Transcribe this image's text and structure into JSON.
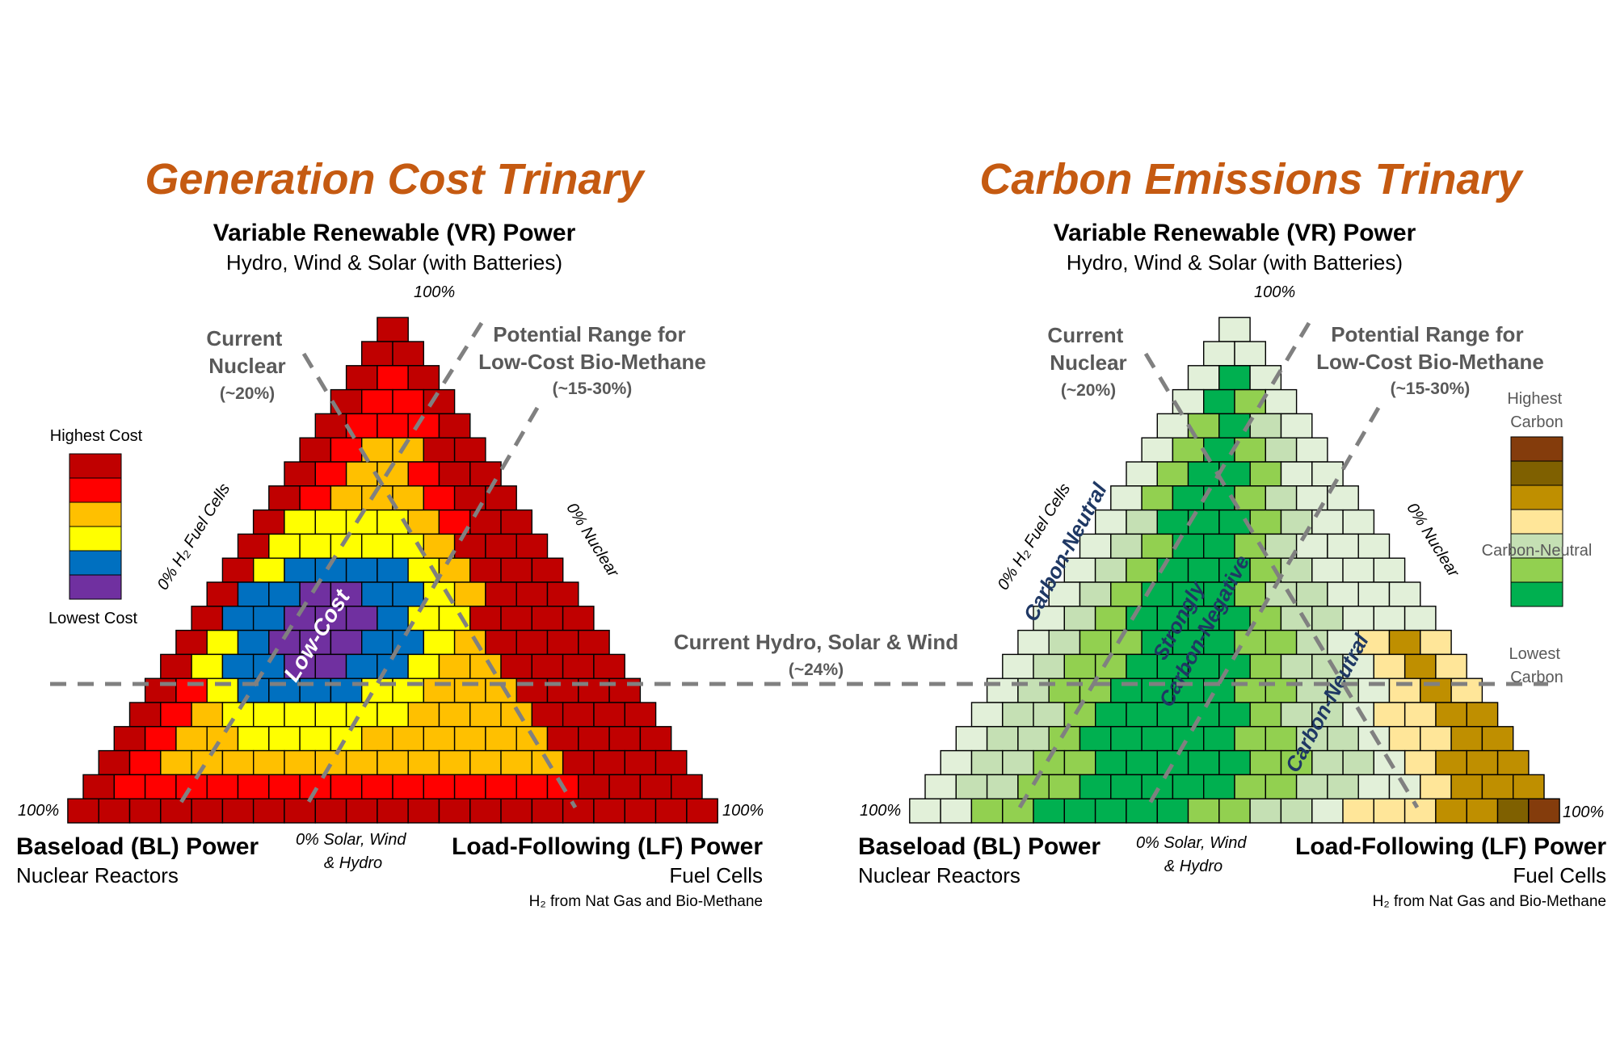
{
  "left": {
    "title": "Generation Cost Trinary",
    "vr_title": "Variable Renewable (VR) Power",
    "vr_sub": "Hydro, Wind & Solar (with Batteries)",
    "vr_pct": "100%",
    "current_nuclear_1": "Current",
    "current_nuclear_2": "Nuclear",
    "current_nuclear_3": "(~20%)",
    "potential_1": "Potential Range for",
    "potential_2": "Low-Cost Bio-Methane",
    "potential_3": "(~15-30%)",
    "h2_axis": "0% H₂ Fuel Cells",
    "nuclear_axis": "0% Nuclear",
    "solar_axis_1": "0% Solar, Wind",
    "solar_axis_2": "& Hydro",
    "bl_pct": "100%",
    "lf_pct": "100%",
    "bl_title": "Baseload (BL) Power",
    "bl_sub": "Nuclear Reactors",
    "lf_title": "Load-Following (LF) Power",
    "lf_sub": "Fuel Cells",
    "lf_sub2": "H₂ from Nat Gas and Bio-Methane",
    "region_label": "Low-Cost",
    "legend_top": "Highest Cost",
    "legend_bottom": "Lowest Cost",
    "legend_colors": [
      "#c00000",
      "#ff0000",
      "#ffc000",
      "#ffff00",
      "#0070c0",
      "#7030a0"
    ]
  },
  "right": {
    "title": "Carbon Emissions Trinary",
    "vr_title": "Variable Renewable (VR) Power",
    "vr_sub": "Hydro, Wind & Solar (with Batteries)",
    "vr_pct": "100%",
    "current_nuclear_1": "Current",
    "current_nuclear_2": "Nuclear",
    "current_nuclear_3": "(~20%)",
    "potential_1": "Potential Range for",
    "potential_2": "Low-Cost Bio-Methane",
    "potential_3": "(~15-30%)",
    "h2_axis": "0% H₂ Fuel Cells",
    "nuclear_axis": "0% Nuclear",
    "solar_axis_1": "0% Solar, Wind",
    "solar_axis_2": "& Hydro",
    "bl_pct": "100%",
    "lf_pct": "100%",
    "bl_title": "Baseload (BL) Power",
    "bl_sub": "Nuclear Reactors",
    "lf_title": "Load-Following (LF) Power",
    "lf_sub": "Fuel Cells",
    "lf_sub2": "H₂ from Nat Gas and Bio-Methane",
    "region_cn_left": "Carbon-Neutral",
    "region_neg_1": "Strongly",
    "region_neg_2": "Carbon-Negative",
    "region_cn_right": "Carbon-Neutral",
    "legend_top_1": "Highest",
    "legend_top_2": "Carbon",
    "legend_mid": "Carbon-Neutral",
    "legend_bottom_1": "Lowest",
    "legend_bottom_2": "Carbon",
    "legend_colors": [
      "#843c0c",
      "#7f6000",
      "#bf8f00",
      "#ffe699",
      "#c5e0b4",
      "#92d050",
      "#00b050"
    ]
  },
  "hydro_line_1": "Current Hydro, Solar & Wind",
  "hydro_line_2": "(~24%)",
  "colors": {
    "title": "#c55a11",
    "annotation": "#595959",
    "region_text": "#1f3864",
    "dash": "#808080"
  }
}
